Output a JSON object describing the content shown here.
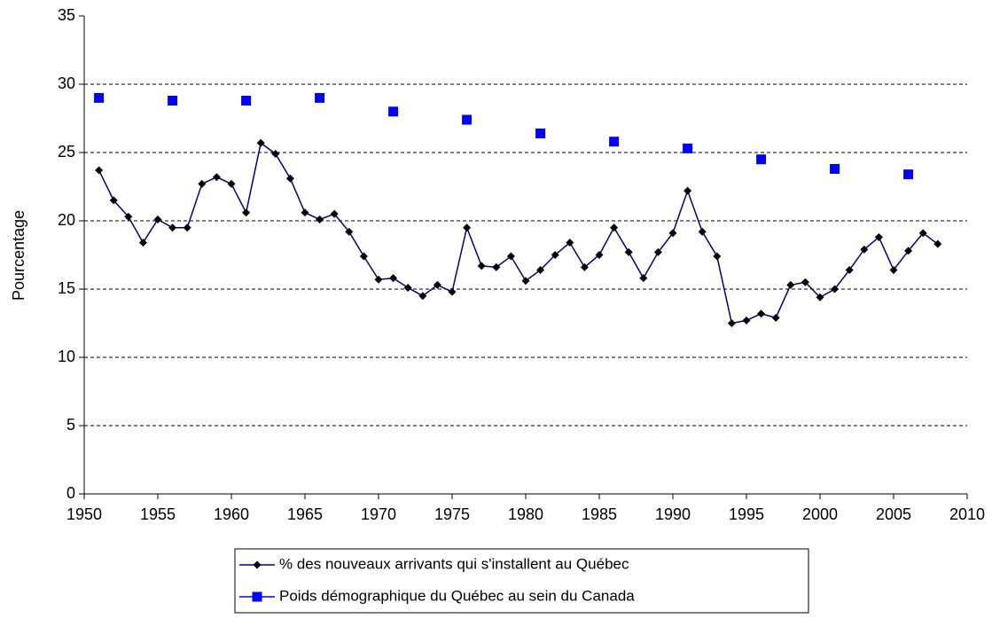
{
  "chart_data": {
    "type": "line",
    "ylabel": "Pourcentage",
    "xlim": [
      1950,
      2010
    ],
    "xticks": [
      1950,
      1955,
      1960,
      1965,
      1970,
      1975,
      1980,
      1985,
      1990,
      1995,
      2000,
      2005,
      2010
    ],
    "ylim": [
      0,
      35
    ],
    "yticks": [
      0,
      5,
      10,
      15,
      20,
      25,
      30,
      35
    ],
    "grid": true,
    "legend": "bottom",
    "series": [
      {
        "name": "% des nouveaux arrivants qui s'installent au Québec",
        "color": "#000080",
        "marker_color": "#000000",
        "marker": "diamond",
        "line": true,
        "x": [
          1951,
          1952,
          1953,
          1954,
          1955,
          1956,
          1957,
          1958,
          1959,
          1960,
          1961,
          1962,
          1963,
          1964,
          1965,
          1966,
          1967,
          1968,
          1969,
          1970,
          1971,
          1972,
          1973,
          1974,
          1975,
          1976,
          1977,
          1978,
          1979,
          1980,
          1981,
          1982,
          1983,
          1984,
          1985,
          1986,
          1987,
          1988,
          1989,
          1990,
          1991,
          1992,
          1993,
          1994,
          1995,
          1996,
          1997,
          1998,
          1999,
          2000,
          2001,
          2002,
          2003,
          2004,
          2005,
          2006,
          2007,
          2008
        ],
        "values": [
          23.7,
          21.5,
          20.3,
          18.4,
          20.1,
          19.5,
          19.5,
          22.7,
          23.2,
          22.7,
          20.6,
          25.7,
          24.9,
          23.1,
          20.6,
          20.1,
          20.5,
          19.2,
          17.4,
          15.7,
          15.8,
          15.1,
          14.5,
          15.3,
          14.8,
          19.5,
          16.7,
          16.6,
          17.4,
          15.6,
          16.4,
          17.5,
          18.4,
          16.6,
          17.5,
          19.5,
          17.7,
          15.8,
          17.7,
          19.1,
          22.2,
          19.2,
          17.4,
          12.5,
          12.7,
          13.2,
          12.9,
          15.3,
          15.5,
          14.4,
          15.0,
          16.4,
          17.9,
          18.8,
          16.4,
          17.8,
          19.1,
          18.3
        ]
      },
      {
        "name": "Poids démographique du Québec au sein du Canada",
        "color": "#0000ff",
        "marker_color": "#0000ff",
        "marker": "square",
        "line": false,
        "x": [
          1951,
          1956,
          1961,
          1966,
          1971,
          1976,
          1981,
          1986,
          1991,
          1996,
          2001,
          2006
        ],
        "values": [
          29.0,
          28.8,
          28.8,
          29.0,
          28.0,
          27.4,
          26.4,
          25.8,
          25.3,
          24.5,
          23.8,
          23.4
        ]
      }
    ]
  }
}
